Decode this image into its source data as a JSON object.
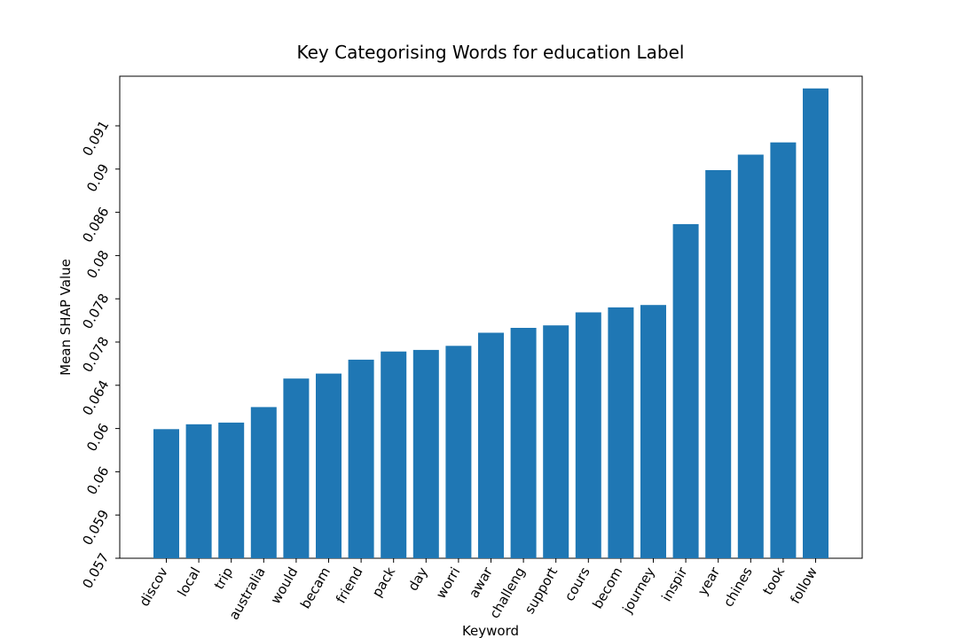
{
  "chart_data": {
    "type": "bar",
    "title": "Key Categorising Words for education Label",
    "xlabel": "Keyword",
    "ylabel": "Mean SHAP Value",
    "categories": [
      "discov",
      "local",
      "trip",
      "australia",
      "would",
      "becam",
      "friend",
      "pack",
      "day",
      "worri",
      "awar",
      "challeng",
      "support",
      "cours",
      "becom",
      "journey",
      "inspir",
      "year",
      "chines",
      "took",
      "follow"
    ],
    "values": [
      0.0588,
      0.0594,
      0.0596,
      0.0615,
      0.065,
      0.0656,
      0.0673,
      0.0683,
      0.0685,
      0.069,
      0.0706,
      0.0712,
      0.0715,
      0.0731,
      0.0737,
      0.074,
      0.0839,
      0.0905,
      0.0924,
      0.0939,
      0.1005
    ],
    "yticks": [
      "0.057",
      "0.059",
      "0.06",
      "0.06",
      "0.064",
      "0.078",
      "0.078",
      "0.08",
      "0.086",
      "0.09",
      "0.091"
    ],
    "ylim": [
      0.043,
      0.102
    ],
    "grid": false,
    "bar_color": "#1f77b4"
  }
}
